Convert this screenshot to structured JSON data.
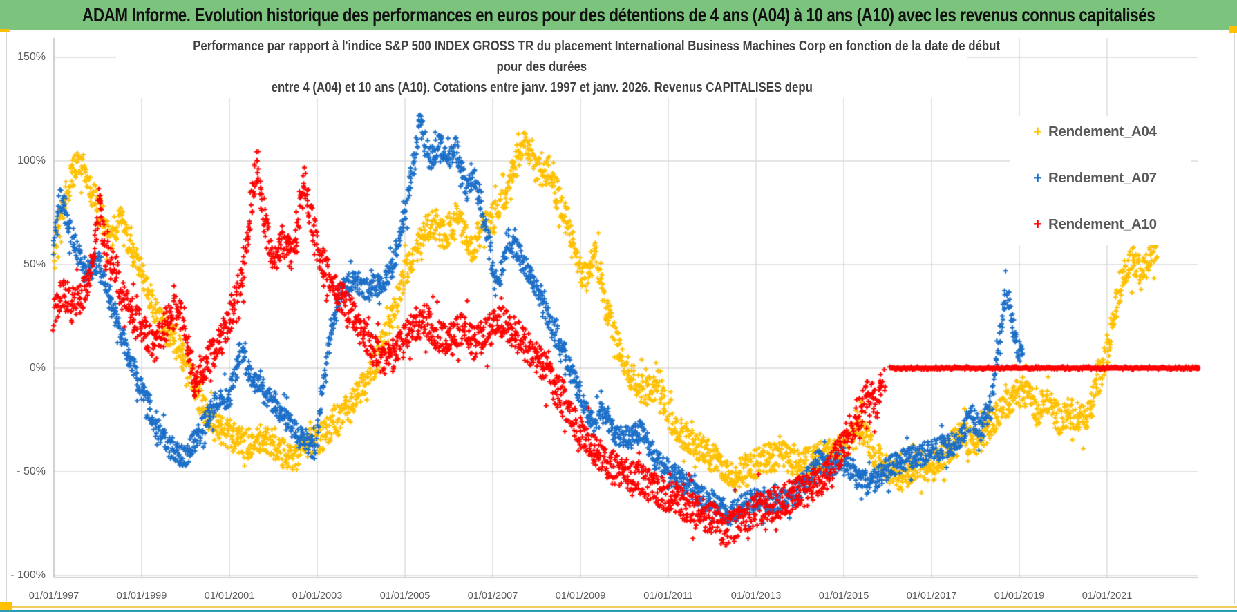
{
  "header": {
    "title": "ADAM Informe. Evolution historique des performances en euros pour des détentions de 4 ans (A04) à 10 ans (A10) avec les revenus connus capitalisés"
  },
  "colors": {
    "header_bg": "#7CC47E",
    "header_text": "#111111",
    "title_text": "#404040",
    "axis_text": "#595959",
    "gridline": "#D9D9D9",
    "axis_line": "#C0C0C0",
    "gold_accent": "#FFC000",
    "teal_bar": "#2D9DB4"
  },
  "chart_data": {
    "type": "scatter",
    "title_lines": [
      "Performance par rapport à l'indice S&P 500 INDEX GROSS TR  du placement International Business Machines Corp en fonction de la date de début",
      "pour des durées",
      "entre 4 (A04) et 10 ans (A10). Cotations entre janv. 1997 et janv. 2026. Revenus CAPITALISES depu"
    ],
    "marker_glyph": "+",
    "grid": true,
    "legend_position": "right",
    "x_range": [
      1997,
      2023.1
    ],
    "y_range_pct": [
      -100,
      150
    ],
    "y_ticks": [
      {
        "label": "150%",
        "value": 150
      },
      {
        "label": "100%",
        "value": 100
      },
      {
        "label": "50%",
        "value": 50
      },
      {
        "label": "0%",
        "value": 0
      },
      {
        "label": "- 50%",
        "value": -50
      },
      {
        "label": "- 100%",
        "value": -100
      }
    ],
    "x_ticks": [
      {
        "label": "01/01/1997",
        "year": 1997
      },
      {
        "label": "01/01/1999",
        "year": 1999
      },
      {
        "label": "01/01/2001",
        "year": 2001
      },
      {
        "label": "01/01/2003",
        "year": 2003
      },
      {
        "label": "01/01/2005",
        "year": 2005
      },
      {
        "label": "01/01/2007",
        "year": 2007
      },
      {
        "label": "01/01/2009",
        "year": 2009
      },
      {
        "label": "01/01/2011",
        "year": 2011
      },
      {
        "label": "01/01/2013",
        "year": 2013
      },
      {
        "label": "01/01/2015",
        "year": 2015
      },
      {
        "label": "01/01/2017",
        "year": 2017
      },
      {
        "label": "01/01/2019",
        "year": 2019
      },
      {
        "label": "01/01/2021",
        "year": 2021
      }
    ],
    "series": [
      {
        "name": "Rendement_A04",
        "color": "#FFC000",
        "spread_pct": 7,
        "keypoints": [
          [
            1997.0,
            55
          ],
          [
            1997.2,
            78
          ],
          [
            1997.45,
            96
          ],
          [
            1997.6,
            101
          ],
          [
            1997.8,
            88
          ],
          [
            1998.0,
            80
          ],
          [
            1998.25,
            62
          ],
          [
            1998.5,
            71
          ],
          [
            1998.75,
            58
          ],
          [
            1999.0,
            45
          ],
          [
            1999.3,
            28
          ],
          [
            1999.6,
            17
          ],
          [
            2000.0,
            4
          ],
          [
            2000.3,
            -14
          ],
          [
            2000.6,
            -27
          ],
          [
            2001.0,
            -32
          ],
          [
            2001.5,
            -38
          ],
          [
            2001.8,
            -33
          ],
          [
            2002.1,
            -40
          ],
          [
            2002.4,
            -43
          ],
          [
            2002.7,
            -37
          ],
          [
            2003.0,
            -35
          ],
          [
            2003.4,
            -26
          ],
          [
            2003.8,
            -16
          ],
          [
            2004.1,
            -6
          ],
          [
            2004.4,
            6
          ],
          [
            2004.7,
            25
          ],
          [
            2005.0,
            46
          ],
          [
            2005.3,
            60
          ],
          [
            2005.6,
            71
          ],
          [
            2005.9,
            63
          ],
          [
            2006.2,
            74
          ],
          [
            2006.5,
            58
          ],
          [
            2006.8,
            68
          ],
          [
            2007.1,
            76
          ],
          [
            2007.4,
            88
          ],
          [
            2007.7,
            111
          ],
          [
            2007.9,
            100
          ],
          [
            2008.1,
            92
          ],
          [
            2008.3,
            96
          ],
          [
            2008.6,
            76
          ],
          [
            2008.9,
            55
          ],
          [
            2009.1,
            42
          ],
          [
            2009.35,
            56
          ],
          [
            2009.6,
            28
          ],
          [
            2009.9,
            8
          ],
          [
            2010.2,
            -6
          ],
          [
            2010.5,
            -12
          ],
          [
            2010.8,
            -8
          ],
          [
            2011.1,
            -28
          ],
          [
            2011.5,
            -35
          ],
          [
            2012.0,
            -43
          ],
          [
            2012.5,
            -53
          ],
          [
            2012.8,
            -48
          ],
          [
            2013.2,
            -44
          ],
          [
            2013.6,
            -42
          ],
          [
            2014.0,
            -47
          ],
          [
            2014.4,
            -43
          ],
          [
            2014.8,
            -40
          ],
          [
            2015.1,
            -36
          ],
          [
            2015.4,
            -29
          ],
          [
            2015.7,
            -42
          ],
          [
            2016.0,
            -48
          ],
          [
            2016.3,
            -53
          ],
          [
            2016.7,
            -46
          ],
          [
            2017.0,
            -49
          ],
          [
            2017.3,
            -41
          ],
          [
            2017.7,
            -33
          ],
          [
            2018.0,
            -36
          ],
          [
            2018.3,
            -28
          ],
          [
            2018.6,
            -20
          ],
          [
            2018.9,
            -13
          ],
          [
            2019.2,
            -10
          ],
          [
            2019.4,
            -22
          ],
          [
            2019.6,
            -15
          ],
          [
            2019.9,
            -25
          ],
          [
            2020.2,
            -22
          ],
          [
            2020.5,
            -25
          ],
          [
            2020.8,
            -8
          ],
          [
            2021.0,
            8
          ],
          [
            2021.2,
            30
          ],
          [
            2021.4,
            48
          ],
          [
            2021.6,
            52
          ],
          [
            2021.8,
            46
          ],
          [
            2022.0,
            55
          ],
          [
            2022.15,
            57
          ]
        ]
      },
      {
        "name": "Rendement_A07",
        "color": "#1C6FC8",
        "spread_pct": 5.5,
        "keypoints": [
          [
            1997.0,
            58
          ],
          [
            1997.15,
            82
          ],
          [
            1997.3,
            72
          ],
          [
            1997.5,
            58
          ],
          [
            1997.75,
            45
          ],
          [
            1998.0,
            52
          ],
          [
            1998.3,
            32
          ],
          [
            1998.6,
            12
          ],
          [
            1999.0,
            -10
          ],
          [
            1999.3,
            -26
          ],
          [
            1999.6,
            -38
          ],
          [
            2000.0,
            -43
          ],
          [
            2000.35,
            -30
          ],
          [
            2000.7,
            -16
          ],
          [
            2001.0,
            -13
          ],
          [
            2001.25,
            8
          ],
          [
            2001.5,
            -4
          ],
          [
            2001.8,
            -12
          ],
          [
            2002.1,
            -18
          ],
          [
            2002.4,
            -28
          ],
          [
            2002.7,
            -34
          ],
          [
            2002.95,
            -39
          ],
          [
            2003.1,
            -15
          ],
          [
            2003.3,
            15
          ],
          [
            2003.5,
            37
          ],
          [
            2003.8,
            43
          ],
          [
            2004.1,
            39
          ],
          [
            2004.4,
            40
          ],
          [
            2004.7,
            48
          ],
          [
            2005.0,
            75
          ],
          [
            2005.2,
            100
          ],
          [
            2005.35,
            119
          ],
          [
            2005.55,
            100
          ],
          [
            2005.8,
            108
          ],
          [
            2006.0,
            100
          ],
          [
            2006.15,
            107
          ],
          [
            2006.4,
            86
          ],
          [
            2006.6,
            92
          ],
          [
            2006.8,
            70
          ],
          [
            2007.0,
            50
          ],
          [
            2007.15,
            42
          ],
          [
            2007.35,
            62
          ],
          [
            2007.6,
            55
          ],
          [
            2007.85,
            45
          ],
          [
            2008.1,
            32
          ],
          [
            2008.4,
            18
          ],
          [
            2008.7,
            4
          ],
          [
            2009.0,
            -14
          ],
          [
            2009.3,
            -28
          ],
          [
            2009.5,
            -20
          ],
          [
            2009.8,
            -32
          ],
          [
            2010.1,
            -34
          ],
          [
            2010.4,
            -30
          ],
          [
            2010.7,
            -44
          ],
          [
            2011.0,
            -50
          ],
          [
            2011.4,
            -56
          ],
          [
            2011.8,
            -63
          ],
          [
            2012.1,
            -66
          ],
          [
            2012.4,
            -71
          ],
          [
            2012.7,
            -66
          ],
          [
            2013.0,
            -63
          ],
          [
            2013.4,
            -66
          ],
          [
            2013.8,
            -62
          ],
          [
            2014.1,
            -57
          ],
          [
            2014.4,
            -45
          ],
          [
            2014.7,
            -48
          ],
          [
            2015.0,
            -43
          ],
          [
            2015.3,
            -53
          ],
          [
            2015.6,
            -56
          ],
          [
            2015.9,
            -50
          ],
          [
            2016.2,
            -46
          ],
          [
            2016.5,
            -43
          ],
          [
            2016.9,
            -41
          ],
          [
            2017.3,
            -38
          ],
          [
            2017.6,
            -36
          ],
          [
            2017.9,
            -22
          ],
          [
            2018.1,
            -30
          ],
          [
            2018.35,
            -18
          ],
          [
            2018.55,
            15
          ],
          [
            2018.7,
            37
          ],
          [
            2018.85,
            20
          ],
          [
            2019.0,
            8
          ],
          [
            2019.1,
            2
          ]
        ]
      },
      {
        "name": "Rendement_A10",
        "color": "#FF0000",
        "spread_pct": 8,
        "keypoints": [
          [
            1997.0,
            25
          ],
          [
            1997.2,
            38
          ],
          [
            1997.4,
            30
          ],
          [
            1997.6,
            33
          ],
          [
            1997.8,
            42
          ],
          [
            1998.05,
            80
          ],
          [
            1998.2,
            55
          ],
          [
            1998.4,
            48
          ],
          [
            1998.6,
            32
          ],
          [
            1998.8,
            25
          ],
          [
            1999.0,
            20
          ],
          [
            1999.3,
            10
          ],
          [
            1999.6,
            24
          ],
          [
            1999.9,
            30
          ],
          [
            2000.2,
            -8
          ],
          [
            2000.5,
            5
          ],
          [
            2000.8,
            12
          ],
          [
            2001.0,
            25
          ],
          [
            2001.3,
            45
          ],
          [
            2001.55,
            88
          ],
          [
            2001.65,
            100
          ],
          [
            2001.8,
            70
          ],
          [
            2002.0,
            52
          ],
          [
            2002.2,
            62
          ],
          [
            2002.45,
            55
          ],
          [
            2002.7,
            90
          ],
          [
            2002.85,
            75
          ],
          [
            2003.0,
            58
          ],
          [
            2003.3,
            42
          ],
          [
            2003.6,
            33
          ],
          [
            2003.9,
            22
          ],
          [
            2004.2,
            10
          ],
          [
            2004.5,
            3
          ],
          [
            2004.8,
            8
          ],
          [
            2005.1,
            17
          ],
          [
            2005.4,
            25
          ],
          [
            2005.7,
            17
          ],
          [
            2006.0,
            12
          ],
          [
            2006.3,
            20
          ],
          [
            2006.6,
            12
          ],
          [
            2006.9,
            18
          ],
          [
            2007.2,
            23
          ],
          [
            2007.5,
            17
          ],
          [
            2007.8,
            10
          ],
          [
            2008.1,
            2
          ],
          [
            2008.4,
            -8
          ],
          [
            2008.7,
            -20
          ],
          [
            2009.0,
            -31
          ],
          [
            2009.3,
            -39
          ],
          [
            2009.6,
            -46
          ],
          [
            2010.0,
            -51
          ],
          [
            2010.5,
            -56
          ],
          [
            2011.0,
            -62
          ],
          [
            2011.5,
            -68
          ],
          [
            2012.0,
            -73
          ],
          [
            2012.3,
            -79
          ],
          [
            2012.6,
            -74
          ],
          [
            2013.0,
            -68
          ],
          [
            2013.5,
            -65
          ],
          [
            2014.0,
            -60
          ],
          [
            2014.5,
            -55
          ],
          [
            2014.8,
            -45
          ],
          [
            2015.1,
            -32
          ],
          [
            2015.35,
            -22
          ],
          [
            2015.55,
            -12
          ],
          [
            2015.75,
            -18
          ],
          [
            2015.92,
            -3
          ]
        ],
        "flat_segment": {
          "from": 2016.05,
          "to": 2023.06,
          "value_pct": 0
        }
      }
    ]
  }
}
